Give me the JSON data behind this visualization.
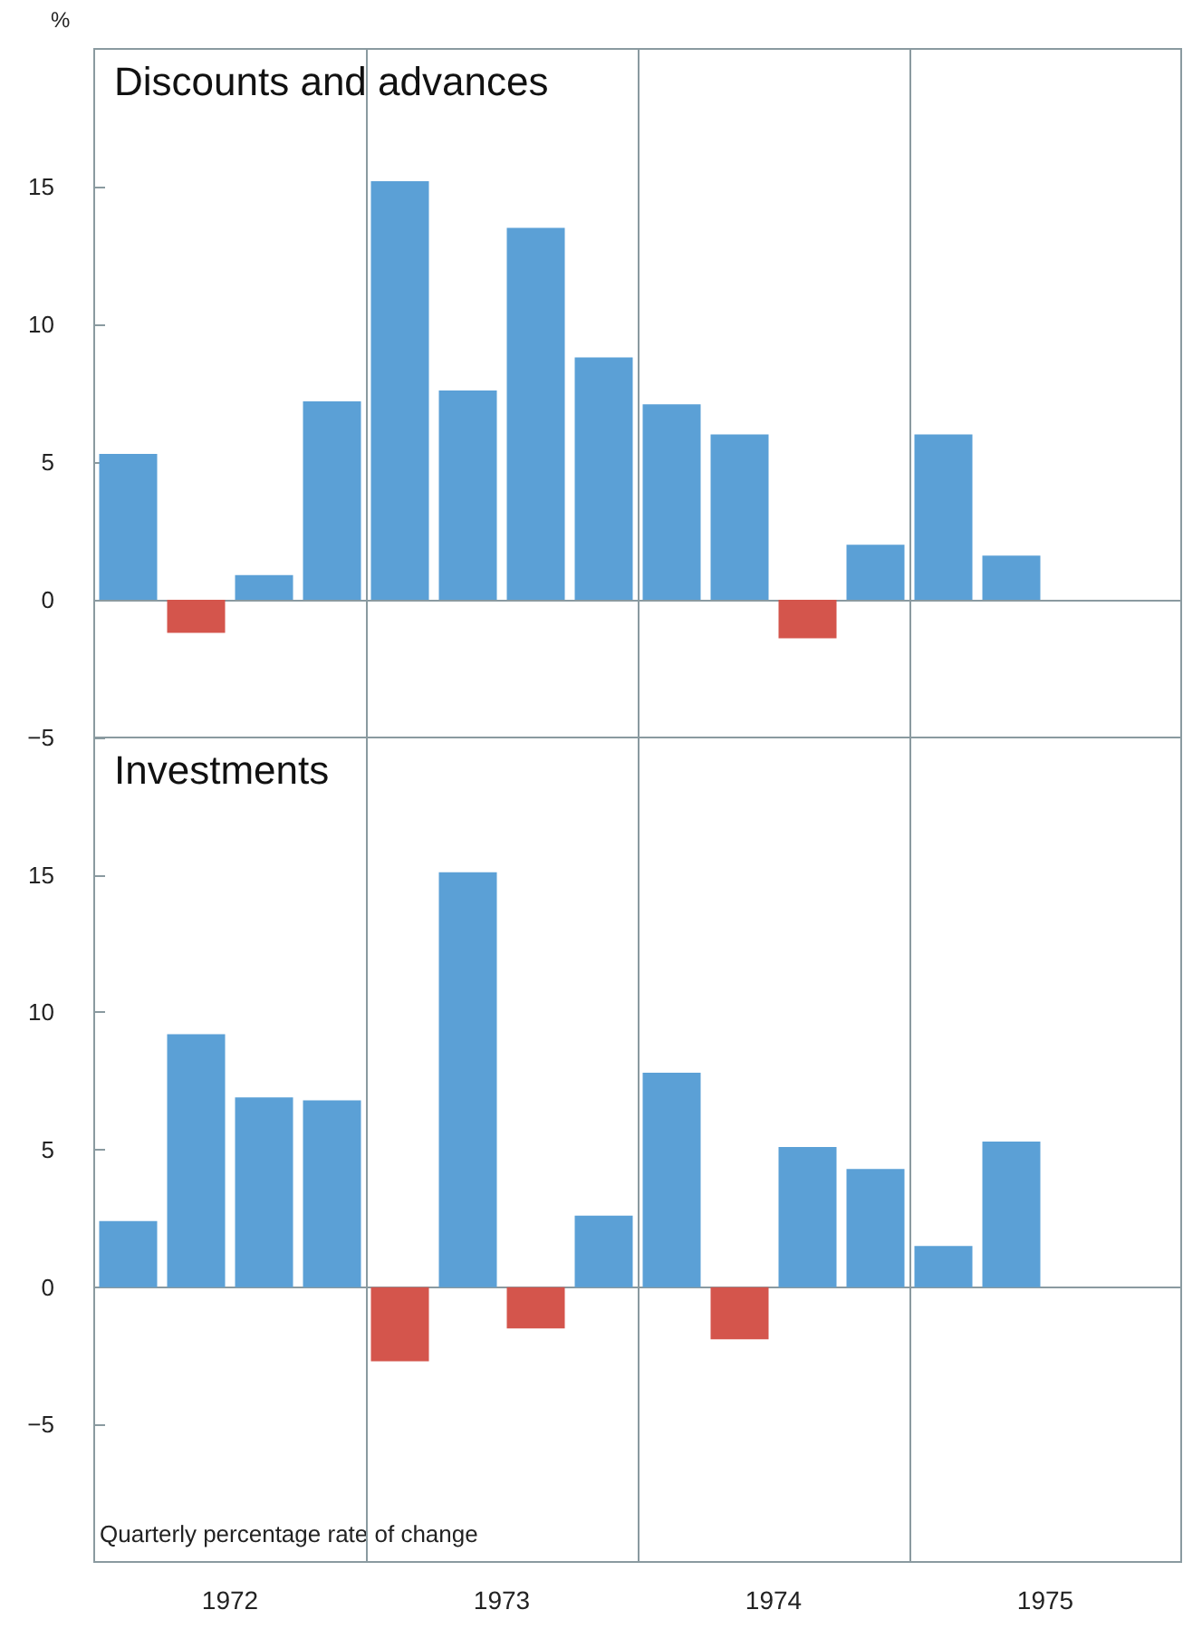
{
  "chart_data": [
    {
      "type": "bar",
      "title": "Discounts and advances",
      "ylabel": "%",
      "x": [
        1972.125,
        1972.375,
        1972.625,
        1972.875,
        1973.125,
        1973.375,
        1973.625,
        1973.875,
        1974.125,
        1974.375,
        1974.625,
        1974.875,
        1975.125,
        1975.375
      ],
      "values": [
        5.3,
        -1.2,
        0.9,
        7.2,
        15.2,
        7.6,
        13.5,
        8.8,
        7.1,
        6.0,
        -1.4,
        2.0,
        6.0,
        1.6
      ],
      "colors": [
        "#5ba0d6",
        "#d4554c",
        "#5ba0d6",
        "#5ba0d6",
        "#5ba0d6",
        "#5ba0d6",
        "#5ba0d6",
        "#5ba0d6",
        "#5ba0d6",
        "#5ba0d6",
        "#d4554c",
        "#5ba0d6",
        "#5ba0d6",
        "#5ba0d6"
      ],
      "xlim": [
        1972,
        1976
      ],
      "ylim": [
        -5,
        20
      ],
      "yticks": [
        -5,
        0,
        5,
        10,
        15
      ],
      "ref_lines": [
        {
          "axis": "x",
          "value": 1973,
          "color": "#8a9aa0"
        },
        {
          "axis": "x",
          "value": 1974,
          "color": "#8a9aa0"
        },
        {
          "axis": "x",
          "value": 1975,
          "color": "#8a9aa0"
        },
        {
          "axis": "y",
          "value": 0,
          "color": "#8a9aa0"
        }
      ],
      "tick_labels": "y"
    },
    {
      "type": "bar",
      "title": "Investments",
      "x": [
        1972.125,
        1972.375,
        1972.625,
        1972.875,
        1973.125,
        1973.375,
        1973.625,
        1973.875,
        1974.125,
        1974.375,
        1974.625,
        1974.875,
        1975.125,
        1975.375
      ],
      "values": [
        2.4,
        9.2,
        6.9,
        6.8,
        -2.7,
        15.1,
        -1.5,
        2.6,
        7.8,
        -1.9,
        5.1,
        4.3,
        1.5,
        5.3
      ],
      "colors": [
        "#5ba0d6",
        "#5ba0d6",
        "#5ba0d6",
        "#5ba0d6",
        "#d4554c",
        "#5ba0d6",
        "#d4554c",
        "#5ba0d6",
        "#5ba0d6",
        "#d4554c",
        "#5ba0d6",
        "#5ba0d6",
        "#5ba0d6",
        "#5ba0d6"
      ],
      "xlim": [
        1972,
        1976
      ],
      "xticks": [
        {
          "value": 1972.5,
          "label": "1972"
        },
        {
          "value": 1973.5,
          "label": "1973"
        },
        {
          "value": 1974.5,
          "label": "1974"
        },
        {
          "value": 1975.5,
          "label": "1975"
        }
      ],
      "ylim": [
        -10,
        20
      ],
      "yticks": [
        -5,
        0,
        5,
        10,
        15
      ],
      "ref_lines": [
        {
          "axis": "x",
          "value": 1973,
          "color": "#8a9aa0"
        },
        {
          "axis": "x",
          "value": 1974,
          "color": "#8a9aa0"
        },
        {
          "axis": "x",
          "value": 1975,
          "color": "#8a9aa0"
        },
        {
          "axis": "y",
          "value": 0,
          "color": "#8a9aa0"
        }
      ],
      "annotations": [
        "Quarterly percentage rate of change"
      ]
    }
  ]
}
